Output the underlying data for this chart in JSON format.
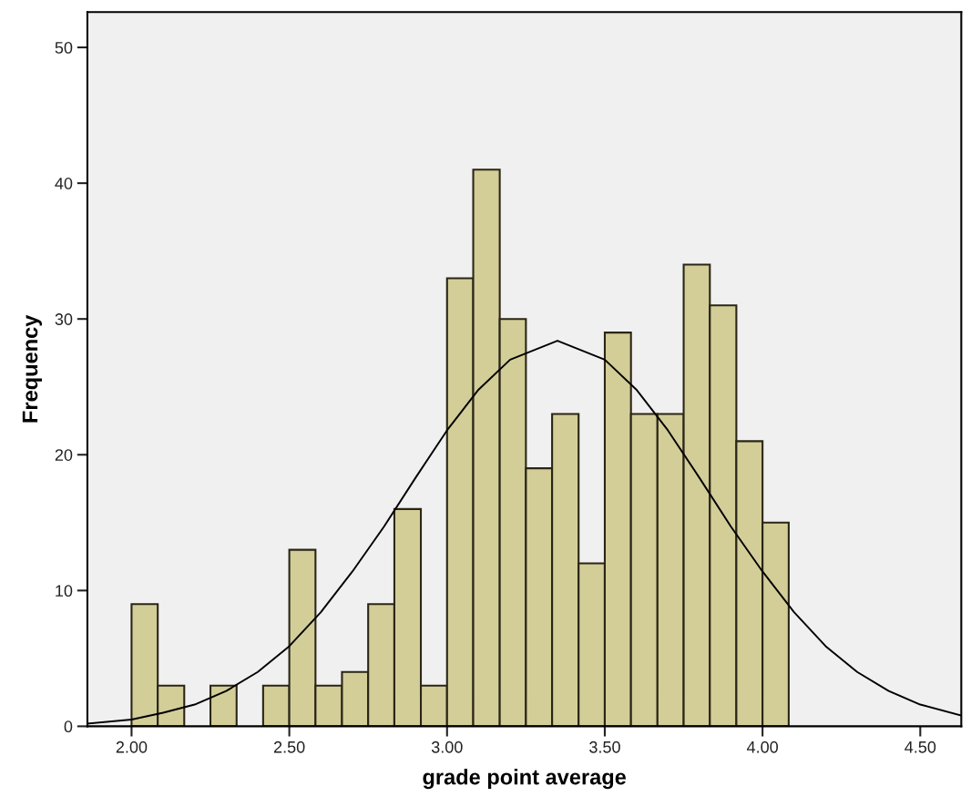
{
  "chart_data": {
    "type": "histogram",
    "xlabel": "grade point average",
    "ylabel": "Frequency",
    "series": [
      {
        "color": "#d3cd98",
        "bins": [
          2.0,
          2.083,
          2.167,
          2.25,
          2.333,
          2.417,
          2.5,
          2.583,
          2.667,
          2.75,
          2.833,
          2.917,
          3.0,
          3.083,
          3.167,
          3.25,
          3.333,
          3.417,
          3.5,
          3.583,
          3.667,
          3.75,
          3.833,
          3.917,
          4.0,
          4.083
        ],
        "values": [
          9,
          3,
          0,
          3,
          0,
          3,
          13,
          3,
          4,
          9,
          16,
          3,
          33,
          41,
          30,
          19,
          23,
          12,
          29,
          23,
          23,
          34,
          31,
          21,
          15
        ]
      },
      {
        "type": "line",
        "color": "#000000",
        "x": [
          1.86,
          2.0,
          2.1,
          2.2,
          2.3,
          2.4,
          2.5,
          2.6,
          2.7,
          2.8,
          2.9,
          3.0,
          3.1,
          3.2,
          3.35,
          3.5,
          3.6,
          3.7,
          3.8,
          3.9,
          4.0,
          4.1,
          4.2,
          4.3,
          4.4,
          4.5,
          4.63
        ],
        "values": [
          0.2,
          0.5,
          1.0,
          1.6,
          2.6,
          4.0,
          5.9,
          8.4,
          11.4,
          14.7,
          18.3,
          21.8,
          24.8,
          27.0,
          28.4,
          27.0,
          24.8,
          21.8,
          18.3,
          14.7,
          11.4,
          8.4,
          5.9,
          4.0,
          2.6,
          1.6,
          0.8
        ]
      }
    ],
    "xlim": [
      1.86,
      4.63
    ],
    "ylim": [
      0,
      52.6
    ],
    "xticks": [
      {
        "value": 2.0,
        "label": "2.00"
      },
      {
        "value": 2.5,
        "label": "2.50"
      },
      {
        "value": 3.0,
        "label": "3.00"
      },
      {
        "value": 3.5,
        "label": "3.50"
      },
      {
        "value": 4.0,
        "label": "4.00"
      },
      {
        "value": 4.5,
        "label": "4.50"
      }
    ],
    "yticks": [
      0,
      10,
      20,
      30,
      40,
      50
    ],
    "grid": false,
    "legend": false
  }
}
